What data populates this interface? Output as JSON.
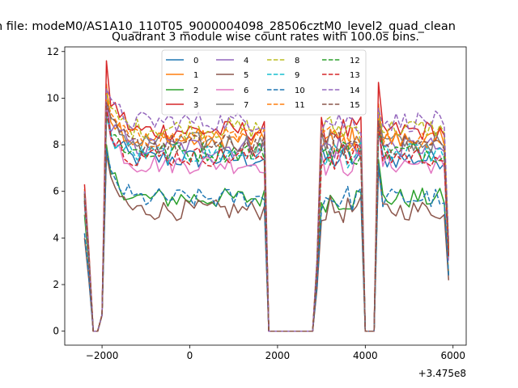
{
  "chart_data": {
    "type": "line",
    "suptitle": "n file: modeM0/AS1A10_110T05_9000004098_28506cztM0_level2_quad_clean",
    "title": "Quadrant 3 module wise count rates with 100.0s bins.",
    "xlabel": "",
    "ylabel": "",
    "x_offset_label": "+3.475e8",
    "xlim": [
      -2850,
      6300
    ],
    "ylim": [
      -0.6,
      12.2
    ],
    "xticks": [
      -2000,
      0,
      2000,
      4000,
      6000
    ],
    "xtick_labels": [
      "−2000",
      "0",
      "2000",
      "4000",
      "6000"
    ],
    "yticks": [
      0,
      2,
      4,
      6,
      8,
      10,
      12
    ],
    "ytick_labels": [
      "0",
      "2",
      "4",
      "6",
      "8",
      "10",
      "12"
    ],
    "legend": {
      "position": "top-center",
      "columns": 4
    },
    "segments": [
      {
        "from": -2400,
        "to": -2100,
        "shape": "drop"
      },
      {
        "from": -1900,
        "to": 1700,
        "shape": "plateau"
      },
      {
        "from": 1800,
        "to": 2800,
        "shape": "zero"
      },
      {
        "from": 2900,
        "to": 3900,
        "shape": "plateau"
      },
      {
        "from": 4000,
        "to": 4200,
        "shape": "zero"
      },
      {
        "from": 4300,
        "to": 5800,
        "shape": "plateau"
      }
    ],
    "series": [
      {
        "name": "0",
        "style": "solid",
        "color": "#1f77b4",
        "start": 5.6,
        "peak": 9.3,
        "level": 7.4
      },
      {
        "name": "1",
        "style": "solid",
        "color": "#ff7f0e",
        "start": 6.1,
        "peak": 10.6,
        "level": 8.2
      },
      {
        "name": "2",
        "style": "solid",
        "color": "#2ca02c",
        "start": 5.0,
        "peak": 8.0,
        "level": 5.7
      },
      {
        "name": "3",
        "style": "solid",
        "color": "#d62728",
        "start": 6.3,
        "peak": 11.6,
        "level": 8.6
      },
      {
        "name": "4",
        "style": "solid",
        "color": "#9467bd",
        "start": 5.8,
        "peak": 9.9,
        "level": 7.9
      },
      {
        "name": "5",
        "style": "solid",
        "color": "#8c564b",
        "start": 4.0,
        "peak": 7.6,
        "level": 5.2
      },
      {
        "name": "6",
        "style": "solid",
        "color": "#e377c2",
        "start": 5.4,
        "peak": 9.5,
        "level": 7.2
      },
      {
        "name": "7",
        "style": "solid",
        "color": "#7f7f7f",
        "start": 5.9,
        "peak": 10.0,
        "level": 8.1
      },
      {
        "name": "8",
        "style": "dashed",
        "color": "#bcbd22",
        "start": 6.0,
        "peak": 10.2,
        "level": 8.7
      },
      {
        "name": "9",
        "style": "dashed",
        "color": "#17becf",
        "start": 5.5,
        "peak": 9.2,
        "level": 7.6
      },
      {
        "name": "10",
        "style": "dashed",
        "color": "#1f77b4",
        "start": 4.2,
        "peak": 7.8,
        "level": 5.7
      },
      {
        "name": "11",
        "style": "dashed",
        "color": "#ff7f0e",
        "start": 5.8,
        "peak": 10.0,
        "level": 8.3
      },
      {
        "name": "12",
        "style": "dashed",
        "color": "#2ca02c",
        "start": 5.7,
        "peak": 9.4,
        "level": 7.7
      },
      {
        "name": "13",
        "style": "dashed",
        "color": "#d62728",
        "start": 5.6,
        "peak": 9.6,
        "level": 7.5
      },
      {
        "name": "14",
        "style": "dashed",
        "color": "#9467bd",
        "start": 6.0,
        "peak": 10.4,
        "level": 9.0
      },
      {
        "name": "15",
        "style": "dashed",
        "color": "#8c564b",
        "start": 5.9,
        "peak": 9.8,
        "level": 8.0
      }
    ]
  }
}
